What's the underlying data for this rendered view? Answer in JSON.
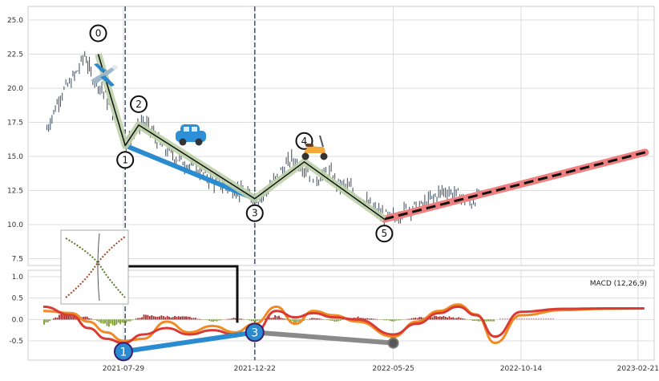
{
  "chart_data": [
    {
      "type": "line",
      "panel": "price",
      "ylim": [
        7.0,
        26.0
      ],
      "yticks": [
        "7.5",
        "10.0",
        "12.5",
        "15.0",
        "17.5",
        "20.0",
        "22.5",
        "25.0"
      ],
      "ytick_values": [
        7.5,
        10.0,
        12.5,
        15.0,
        17.5,
        20.0,
        22.5,
        25.0
      ],
      "xlim": [
        "2021-04-14",
        "2023-03-11"
      ],
      "grid": true,
      "series": [
        {
          "kind": "ohlc-bars",
          "color": "#3d4a5c",
          "x": [
            "2021-05-05",
            "2021-05-20",
            "2021-06-01",
            "2021-06-10",
            "2021-06-16",
            "2021-06-23",
            "2021-07-05",
            "2021-07-15",
            "2021-07-25",
            "2021-08-01",
            "2021-08-10",
            "2021-08-18",
            "2021-08-28",
            "2021-09-08",
            "2021-09-20",
            "2021-10-05",
            "2021-10-20",
            "2021-11-05",
            "2021-11-20",
            "2021-12-05",
            "2021-12-18",
            "2021-12-26",
            "2022-01-08",
            "2022-01-22",
            "2022-02-01",
            "2022-02-15",
            "2022-03-01",
            "2022-03-15",
            "2022-03-25",
            "2022-04-08",
            "2022-04-22",
            "2022-05-05",
            "2022-05-15",
            "2022-05-25",
            "2022-06-10",
            "2022-06-25",
            "2022-07-05",
            "2022-07-20",
            "2022-08-05",
            "2022-08-20",
            "2022-08-30"
          ],
          "values": [
            17.0,
            19.5,
            20.5,
            21.5,
            22.5,
            21.0,
            20.0,
            18.5,
            17.5,
            16.0,
            16.8,
            17.5,
            17.0,
            15.8,
            15.2,
            14.5,
            14.0,
            13.2,
            12.8,
            12.4,
            12.0,
            11.9,
            12.8,
            14.0,
            14.8,
            14.2,
            13.4,
            13.8,
            13.0,
            12.6,
            11.8,
            11.0,
            10.6,
            10.5,
            11.2,
            11.3,
            11.8,
            12.5,
            12.2,
            11.6,
            12.3
          ]
        },
        {
          "kind": "wave-line",
          "color": "#111111",
          "labels": [
            "0",
            "1",
            "2",
            "3",
            "4",
            "5"
          ],
          "x": [
            "2021-07-01",
            "2021-07-31",
            "2021-08-15",
            "2021-12-22",
            "2022-02-15",
            "2022-05-15"
          ],
          "values": [
            22.5,
            15.8,
            17.3,
            11.9,
            14.6,
            10.4
          ]
        },
        {
          "kind": "blue-line",
          "color": "#2b8bd0",
          "x": [
            "2021-07-31",
            "2021-12-22"
          ],
          "values": [
            15.8,
            11.9
          ]
        },
        {
          "kind": "forecast",
          "color": "#111111",
          "halo_color": "#f08080",
          "x": [
            "2022-05-15",
            "2023-03-01"
          ],
          "values": [
            10.4,
            15.3
          ]
        }
      ],
      "vlines": [
        "2021-07-31",
        "2021-12-22"
      ],
      "icons": [
        "airplane-icon",
        "car-icon",
        "scooter-icon"
      ]
    },
    {
      "type": "line",
      "panel": "macd",
      "legend_text": "MACD (12,26,9)",
      "ylim": [
        -0.95,
        1.15
      ],
      "yticks": [
        "-0.5",
        "0.0",
        "0.5",
        "1.0"
      ],
      "ytick_values": [
        -0.5,
        0.0,
        0.5,
        1.0
      ],
      "xticks": [
        "2021-07-29",
        "2021-12-22",
        "2022-05-25",
        "2022-10-14",
        "2023-02-21"
      ],
      "xlim": [
        "2021-04-14",
        "2023-03-11"
      ],
      "grid": true,
      "series": [
        {
          "kind": "macd",
          "color": "#d93a34",
          "x": [
            "2021-05-01",
            "2021-06-01",
            "2021-06-20",
            "2021-07-10",
            "2021-07-29",
            "2021-08-20",
            "2021-09-15",
            "2021-10-10",
            "2021-11-05",
            "2021-11-30",
            "2021-12-22",
            "2022-01-15",
            "2022-02-05",
            "2022-02-25",
            "2022-03-20",
            "2022-04-15",
            "2022-05-25",
            "2022-06-20",
            "2022-07-15",
            "2022-08-05",
            "2022-08-25",
            "2022-09-15",
            "2022-10-14",
            "2022-11-30",
            "2023-01-15",
            "2023-02-28"
          ],
          "values": [
            0.3,
            0.1,
            -0.2,
            -0.45,
            -0.55,
            -0.35,
            -0.2,
            -0.35,
            -0.25,
            -0.35,
            -0.3,
            0.2,
            0.05,
            0.15,
            0.05,
            0.0,
            -0.35,
            -0.1,
            0.15,
            0.3,
            0.1,
            -0.4,
            0.18,
            0.25,
            0.26,
            0.26
          ]
        },
        {
          "kind": "signal",
          "color": "#f08a24",
          "x": [
            "2021-05-01",
            "2021-06-01",
            "2021-06-20",
            "2021-07-10",
            "2021-07-29",
            "2021-08-20",
            "2021-09-15",
            "2021-10-10",
            "2021-11-05",
            "2021-11-30",
            "2021-12-22",
            "2022-01-15",
            "2022-02-05",
            "2022-02-25",
            "2022-03-20",
            "2022-04-15",
            "2022-05-25",
            "2022-06-20",
            "2022-07-15",
            "2022-08-05",
            "2022-08-25",
            "2022-09-15",
            "2022-10-14",
            "2022-11-30",
            "2023-01-15",
            "2023-02-28"
          ],
          "values": [
            0.2,
            0.15,
            -0.05,
            -0.3,
            -0.5,
            -0.45,
            -0.05,
            -0.3,
            -0.15,
            -0.3,
            -0.1,
            0.3,
            -0.1,
            0.2,
            0.1,
            -0.05,
            -0.4,
            -0.05,
            0.2,
            0.35,
            0.12,
            -0.55,
            0.1,
            0.22,
            0.25,
            0.26
          ]
        },
        {
          "kind": "histogram",
          "x": [
            "2021-05-01",
            "2021-05-20",
            "2021-06-01",
            "2021-06-20",
            "2021-07-10",
            "2021-07-29",
            "2021-08-20",
            "2021-09-15",
            "2021-10-10",
            "2021-11-05",
            "2021-11-30",
            "2021-12-22",
            "2022-01-15",
            "2022-02-05",
            "2022-02-25",
            "2022-03-20",
            "2022-04-15",
            "2022-05-25",
            "2022-06-20",
            "2022-07-15",
            "2022-08-05",
            "2022-08-25",
            "2022-09-15"
          ],
          "values": [
            -0.1,
            0.12,
            0.1,
            0.05,
            -0.15,
            -0.1,
            0.1,
            0.08,
            0.06,
            -0.05,
            0.05,
            -0.05,
            0.1,
            -0.08,
            0.05,
            -0.05,
            0.06,
            -0.04,
            0.05,
            0.08,
            0.05,
            -0.05,
            -0.06
          ],
          "positive_color": "#a52a2a",
          "negative_color": "#7a9a2a"
        }
      ],
      "markers": [
        {
          "label": "1",
          "x": "2021-07-29",
          "y": -0.75,
          "color": "#2b8bd0"
        },
        {
          "label": "3",
          "x": "2021-12-22",
          "y": -0.3,
          "color": "#2b8bd0"
        },
        {
          "label": "",
          "x": "2022-05-25",
          "y": -0.55,
          "color": "#555555"
        }
      ]
    }
  ]
}
